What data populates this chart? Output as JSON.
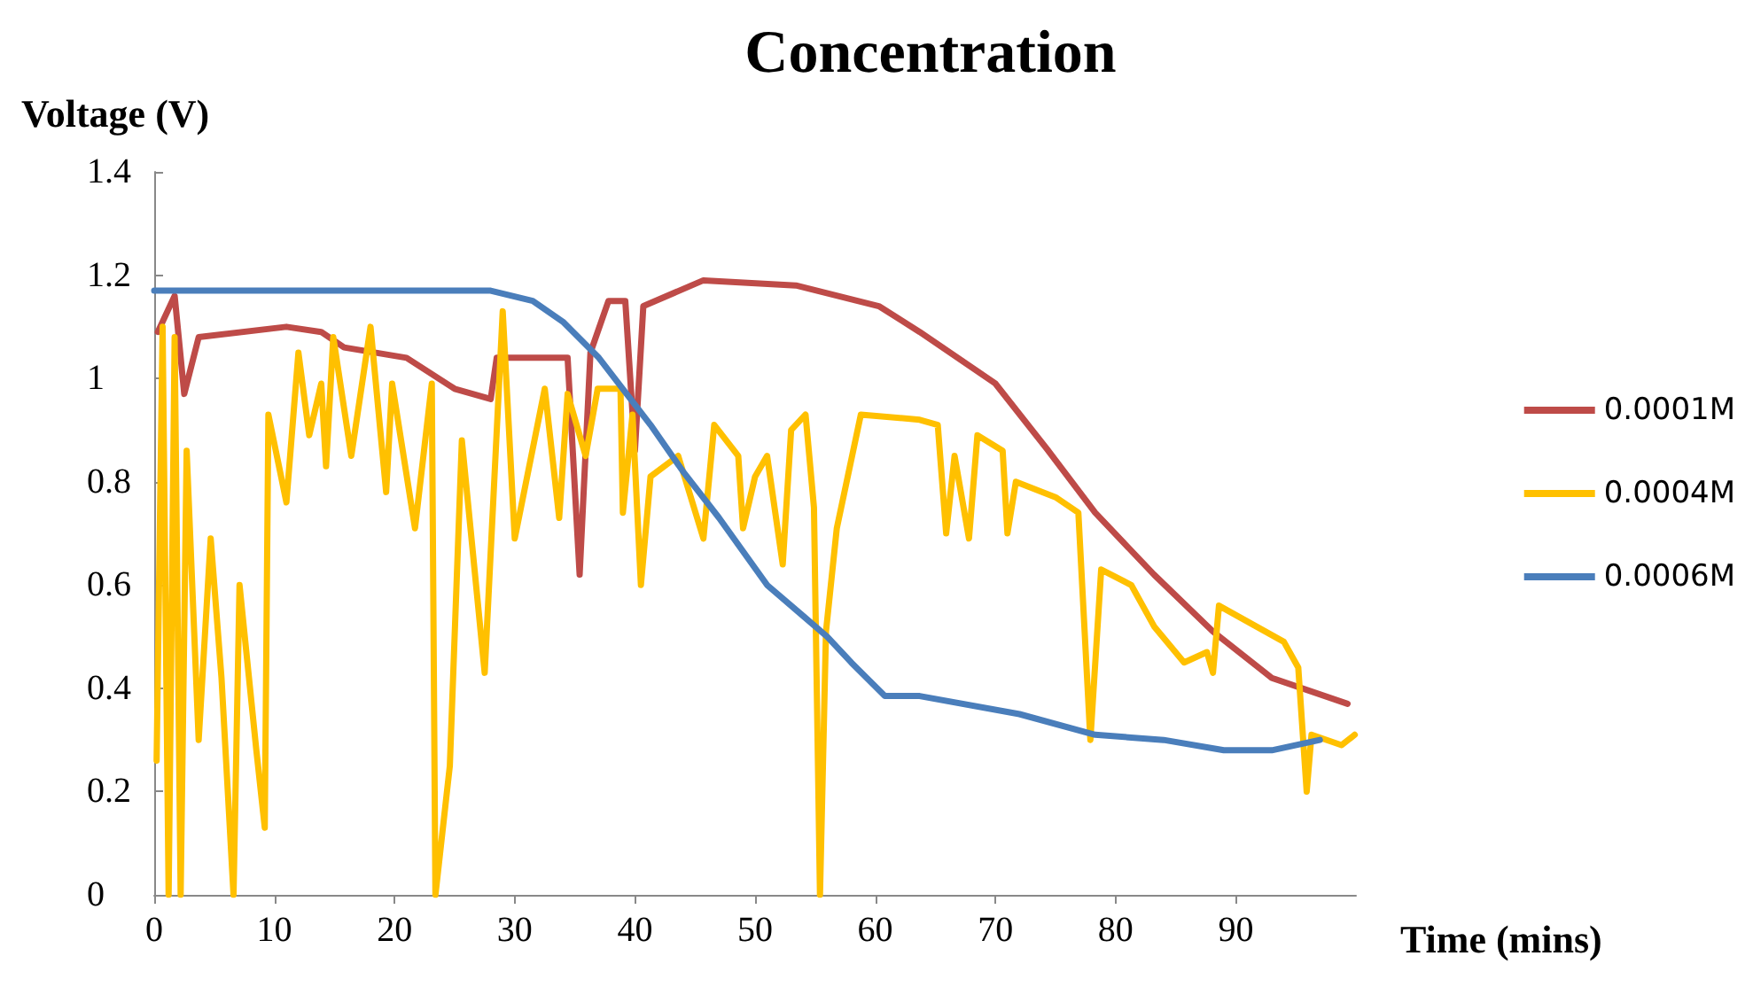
{
  "chart_data": {
    "type": "line",
    "title": "Concentration",
    "xlabel": "Time (mins)",
    "ylabel": "Voltage (V)",
    "xlim": [
      0,
      100
    ],
    "xticks": [
      0,
      10,
      20,
      30,
      40,
      50,
      60,
      70,
      80,
      90
    ],
    "ylim": [
      0,
      1.4
    ],
    "yticks": [
      0,
      0.2,
      0.4,
      0.6,
      0.8,
      1,
      1.2,
      1.4
    ],
    "grid": false,
    "legend": "right",
    "marker": "none",
    "line_style": "solid",
    "series": [
      {
        "name": "0.0001M",
        "color": "#be4b48",
        "x": [
          0.3,
          1.7,
          2.5,
          3.7,
          11,
          13.9,
          15.8,
          21,
          25,
          28,
          28.5,
          33,
          34.4,
          35.4,
          36.3,
          37.8,
          39.2,
          40,
          40.7,
          45.7,
          53.4,
          60.3,
          63.7,
          70,
          74.4,
          78.3,
          83.2,
          88.1,
          93,
          99.3
        ],
        "values": [
          1.09,
          1.16,
          0.97,
          1.08,
          1.1,
          1.09,
          1.06,
          1.04,
          0.98,
          0.96,
          1.04,
          1.04,
          1.04,
          0.62,
          1.05,
          1.15,
          1.15,
          0.86,
          1.14,
          1.19,
          1.18,
          1.14,
          1.09,
          0.99,
          0.86,
          0.74,
          0.62,
          0.51,
          0.42,
          0.37
        ]
      },
      {
        "name": "0.0004M",
        "color": "#ffc000",
        "x": [
          0.2,
          0.7,
          1.2,
          1.7,
          2.2,
          2.7,
          3.7,
          4.7,
          5.6,
          6.6,
          7.1,
          8.5,
          9.2,
          9.5,
          11,
          12,
          12.9,
          13.9,
          14.3,
          14.9,
          16.4,
          18,
          19.3,
          19.8,
          21.7,
          23.1,
          23.4,
          24.6,
          25.6,
          27.5,
          29,
          30,
          32.5,
          33.7,
          34.4,
          35.9,
          36.9,
          38.8,
          39,
          39.8,
          40.5,
          41.3,
          43.6,
          45.7,
          46.6,
          48.6,
          49,
          50,
          51,
          52.3,
          53,
          54.2,
          54.9,
          55.4,
          55.9,
          56.8,
          58.8,
          63.7,
          65.2,
          65.9,
          66.6,
          67.8,
          68.5,
          70.6,
          71,
          71.7,
          75,
          76.9,
          77.9,
          78.8,
          81.3,
          83.2,
          85.7,
          87.6,
          88.1,
          88.6,
          94,
          95.2,
          95.9,
          96.3,
          98.8,
          99.9
        ],
        "values": [
          0.26,
          1.1,
          0,
          1.08,
          0,
          0.86,
          0.3,
          0.69,
          0.42,
          0,
          0.6,
          0.28,
          0.13,
          0.93,
          0.76,
          1.05,
          0.89,
          0.99,
          0.83,
          1.08,
          0.85,
          1.1,
          0.78,
          0.99,
          0.71,
          0.99,
          0,
          0.25,
          0.88,
          0.43,
          1.13,
          0.69,
          0.98,
          0.73,
          0.97,
          0.85,
          0.98,
          0.98,
          0.74,
          0.93,
          0.6,
          0.81,
          0.85,
          0.69,
          0.91,
          0.85,
          0.71,
          0.81,
          0.85,
          0.64,
          0.9,
          0.93,
          0.75,
          0,
          0.51,
          0.71,
          0.93,
          0.92,
          0.91,
          0.7,
          0.85,
          0.69,
          0.89,
          0.86,
          0.7,
          0.8,
          0.77,
          0.74,
          0.3,
          0.63,
          0.6,
          0.52,
          0.45,
          0.47,
          0.43,
          0.56,
          0.49,
          0.44,
          0.2,
          0.31,
          0.29,
          0.31
        ]
      },
      {
        "name": "0.0006M",
        "color": "#4a7ebb",
        "x": [
          0,
          10,
          20,
          28,
          31.5,
          34,
          37,
          41.3,
          44,
          47,
          51,
          54,
          56,
          58,
          60.8,
          63.7,
          72,
          78.3,
          84,
          89,
          93,
          97
        ],
        "values": [
          1.17,
          1.17,
          1.17,
          1.17,
          1.15,
          1.11,
          1.04,
          0.91,
          0.82,
          0.73,
          0.6,
          0.54,
          0.5,
          0.45,
          0.385,
          0.385,
          0.35,
          0.31,
          0.3,
          0.28,
          0.28,
          0.3
        ]
      }
    ]
  }
}
